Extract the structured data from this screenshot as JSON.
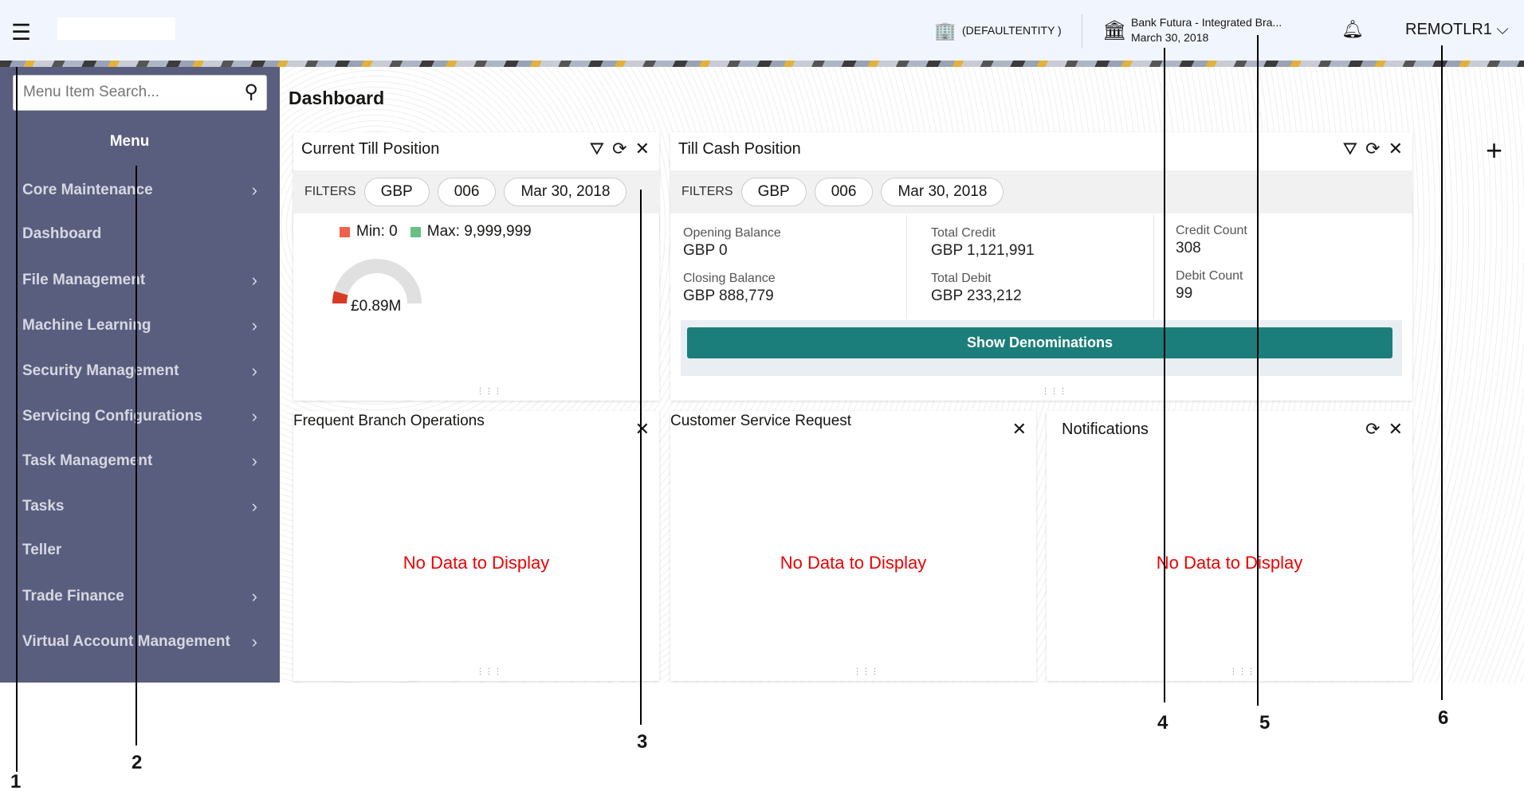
{
  "header": {
    "entity": "(DEFAULTENTITY )",
    "branch": "Bank Futura - Integrated Bra...",
    "date": "March 30, 2018",
    "user": "REMOTLR1"
  },
  "sidebar": {
    "search_placeholder": "Menu Item Search...",
    "menu_title": "Menu",
    "items": [
      {
        "label": "Core Maintenance",
        "has_children": true
      },
      {
        "label": "Dashboard",
        "has_children": false
      },
      {
        "label": "File Management",
        "has_children": true
      },
      {
        "label": "Machine Learning",
        "has_children": true
      },
      {
        "label": "Security Management",
        "has_children": true
      },
      {
        "label": "Servicing Configurations",
        "has_children": true
      },
      {
        "label": "Task Management",
        "has_children": true
      },
      {
        "label": "Tasks",
        "has_children": true
      },
      {
        "label": "Teller",
        "has_children": false
      },
      {
        "label": "Trade Finance",
        "has_children": true
      },
      {
        "label": "Virtual Account Management",
        "has_children": true
      }
    ]
  },
  "page_title": "Dashboard",
  "till": {
    "title": "Current Till Position",
    "filters_label": "FILTERS",
    "filters": [
      "GBP",
      "006",
      "Mar 30, 2018"
    ],
    "min_label": "Min: 0",
    "max_label": "Max: 9,999,999",
    "value_label": "£0.89M",
    "min": 0,
    "max": 9999999,
    "value": 890000,
    "colors": {
      "min": "#f0604d",
      "max": "#68c182",
      "fill": "#d63b25",
      "track": "#e0e0e0"
    }
  },
  "cash": {
    "title": "Till Cash Position",
    "filters_label": "FILTERS",
    "filters": [
      "GBP",
      "006",
      "Mar 30, 2018"
    ],
    "opening_label": "Opening Balance",
    "opening": "GBP 0",
    "closing_label": "Closing Balance",
    "closing": "GBP 888,779",
    "credit_label": "Total Credit",
    "credit": "GBP 1,121,991",
    "debit_label": "Total Debit",
    "debit": "GBP 233,212",
    "credit_count_label": "Credit Count",
    "credit_count": "308",
    "debit_count_label": "Debit Count",
    "debit_count": "99",
    "button": "Show Denominations",
    "button_color": "#1c7e7a"
  },
  "widgets": [
    {
      "title": "Frequent Branch Operations",
      "nodata": "No Data to Display"
    },
    {
      "title": "Customer Service Request",
      "nodata": "No Data to Display"
    },
    {
      "title": "Notifications",
      "nodata": "No Data to Display"
    }
  ],
  "annotations": [
    "1",
    "2",
    "3",
    "4",
    "5",
    "6"
  ]
}
